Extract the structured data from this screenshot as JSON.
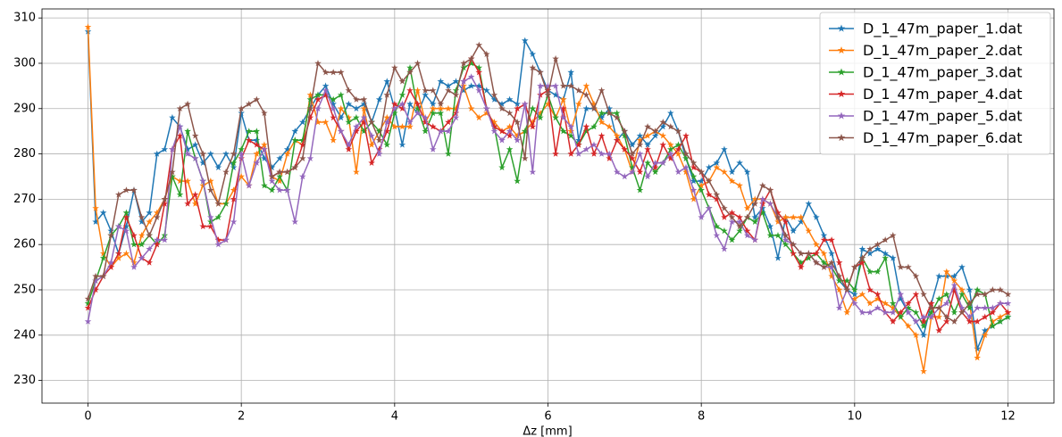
{
  "chart_data": {
    "type": "line",
    "xlabel": "Δz [mm]",
    "x": [
      0,
      0.1,
      0.2,
      0.3,
      0.4,
      0.5,
      0.6,
      0.7,
      0.8,
      0.9,
      1,
      1.1,
      1.2,
      1.3,
      1.4,
      1.5,
      1.6,
      1.7,
      1.8,
      1.9,
      2,
      2.1,
      2.2,
      2.3,
      2.4,
      2.5,
      2.6,
      2.7,
      2.8,
      2.9,
      3,
      3.1,
      3.2,
      3.3,
      3.4,
      3.5,
      3.6,
      3.7,
      3.8,
      3.9,
      4,
      4.1,
      4.2,
      4.3,
      4.4,
      4.5,
      4.6,
      4.7,
      4.8,
      4.9,
      5,
      5.1,
      5.2,
      5.3,
      5.4,
      5.5,
      5.6,
      5.7,
      5.8,
      5.9,
      6,
      6.1,
      6.2,
      6.3,
      6.4,
      6.5,
      6.6,
      6.7,
      6.8,
      6.9,
      7,
      7.1,
      7.2,
      7.3,
      7.4,
      7.5,
      7.6,
      7.7,
      7.8,
      7.9,
      8,
      8.1,
      8.2,
      8.3,
      8.4,
      8.5,
      8.6,
      8.7,
      8.8,
      8.9,
      9,
      9.1,
      9.2,
      9.3,
      9.4,
      9.5,
      9.6,
      9.7,
      9.8,
      9.9,
      10,
      10.1,
      10.2,
      10.3,
      10.4,
      10.5,
      10.6,
      10.7,
      10.8,
      10.9,
      11,
      11.1,
      11.2,
      11.3,
      11.4,
      11.5,
      11.6,
      11.7,
      11.8,
      11.9,
      12
    ],
    "series": [
      {
        "name": "D_1_47m_paper_1.dat",
        "color": "#1f77b4",
        "values": [
          307,
          265,
          267,
          263,
          258,
          264,
          272,
          265,
          267,
          280,
          281,
          288,
          286,
          281,
          282,
          278,
          280,
          277,
          280,
          277,
          289,
          283,
          283,
          279,
          277,
          279,
          281,
          285,
          287,
          290,
          293,
          295,
          291,
          288,
          291,
          290,
          291,
          287,
          292,
          296,
          290,
          282,
          291,
          289,
          293,
          291,
          296,
          295,
          296,
          294,
          295,
          295,
          294,
          292,
          291,
          292,
          291,
          305,
          302,
          298,
          294,
          293,
          292,
          298,
          283,
          290,
          290,
          288,
          290,
          283,
          285,
          282,
          284,
          282,
          284,
          286,
          289,
          285,
          279,
          274,
          274,
          277,
          278,
          281,
          276,
          278,
          276,
          266,
          268,
          264,
          257,
          266,
          263,
          265,
          269,
          266,
          262,
          258,
          252,
          250,
          249,
          259,
          258,
          259,
          258,
          257,
          248,
          245,
          243,
          240,
          247,
          253,
          253,
          253,
          255,
          250,
          237,
          241,
          242,
          243,
          244
        ]
      },
      {
        "name": "D_1_47m_paper_2.dat",
        "color": "#ff7f0e",
        "values": [
          308,
          268,
          258,
          255,
          257,
          258,
          256,
          262,
          265,
          267,
          270,
          275,
          274,
          274,
          269,
          273,
          274,
          269,
          269,
          272,
          275,
          273,
          280,
          282,
          275,
          274,
          280,
          283,
          282,
          293,
          287,
          287,
          283,
          290,
          288,
          276,
          290,
          282,
          285,
          288,
          286,
          286,
          286,
          294,
          287,
          290,
          290,
          290,
          290,
          295,
          290,
          288,
          289,
          287,
          285,
          286,
          284,
          285,
          287,
          289,
          291,
          288,
          292,
          285,
          291,
          295,
          291,
          287,
          286,
          284,
          281,
          276,
          283,
          284,
          285,
          284,
          282,
          280,
          276,
          270,
          273,
          274,
          277,
          276,
          274,
          273,
          268,
          270,
          270,
          269,
          265,
          266,
          266,
          266,
          263,
          260,
          258,
          253,
          250,
          245,
          248,
          249,
          247,
          248,
          247,
          246,
          244,
          242,
          240,
          232,
          244,
          244,
          254,
          252,
          250,
          247,
          235,
          240,
          243,
          244,
          245
        ]
      },
      {
        "name": "D_1_47m_paper_3.dat",
        "color": "#2ca02c",
        "values": [
          247,
          252,
          257,
          262,
          264,
          267,
          260,
          260,
          262,
          260,
          262,
          275,
          271,
          285,
          279,
          274,
          265,
          266,
          269,
          278,
          281,
          285,
          285,
          273,
          272,
          275,
          272,
          283,
          283,
          292,
          293,
          293,
          292,
          293,
          287,
          288,
          285,
          287,
          285,
          282,
          289,
          293,
          299,
          290,
          285,
          289,
          289,
          280,
          294,
          299,
          300,
          299,
          290,
          286,
          277,
          281,
          274,
          285,
          290,
          288,
          293,
          288,
          285,
          284,
          282,
          285,
          286,
          289,
          289,
          289,
          284,
          277,
          272,
          278,
          276,
          278,
          281,
          282,
          279,
          275,
          272,
          268,
          264,
          263,
          261,
          263,
          266,
          265,
          267,
          262,
          262,
          260,
          258,
          256,
          257,
          258,
          256,
          255,
          252,
          252,
          250,
          257,
          254,
          254,
          257,
          247,
          244,
          246,
          245,
          242,
          245,
          248,
          249,
          245,
          249,
          246,
          250,
          249,
          242,
          243,
          244
        ]
      },
      {
        "name": "D_1_47m_paper_4.dat",
        "color": "#d62728",
        "values": [
          246,
          250,
          253,
          255,
          258,
          266,
          262,
          257,
          256,
          260,
          269,
          281,
          284,
          269,
          271,
          264,
          264,
          261,
          261,
          270,
          279,
          283,
          282,
          281,
          275,
          276,
          276,
          277,
          282,
          288,
          292,
          293,
          288,
          285,
          281,
          285,
          287,
          278,
          281,
          285,
          291,
          290,
          294,
          291,
          287,
          286,
          285,
          287,
          289,
          296,
          301,
          298,
          290,
          286,
          285,
          284,
          290,
          291,
          286,
          293,
          294,
          280,
          290,
          280,
          282,
          286,
          280,
          284,
          279,
          283,
          281,
          279,
          276,
          281,
          277,
          282,
          279,
          281,
          284,
          277,
          276,
          271,
          270,
          266,
          267,
          266,
          263,
          261,
          269,
          272,
          267,
          265,
          258,
          255,
          258,
          258,
          261,
          261,
          256,
          250,
          255,
          256,
          250,
          249,
          245,
          243,
          245,
          247,
          249,
          243,
          247,
          241,
          243,
          250,
          245,
          243,
          243,
          244,
          245,
          247,
          245
        ]
      },
      {
        "name": "D_1_47m_paper_5.dat",
        "color": "#9467bd",
        "values": [
          243,
          252,
          253,
          256,
          264,
          263,
          255,
          257,
          259,
          261,
          261,
          281,
          286,
          280,
          279,
          274,
          266,
          260,
          261,
          265,
          280,
          273,
          278,
          281,
          274,
          272,
          272,
          265,
          275,
          279,
          290,
          294,
          290,
          285,
          282,
          286,
          288,
          284,
          280,
          287,
          290,
          291,
          287,
          289,
          288,
          281,
          285,
          285,
          288,
          296,
          297,
          294,
          290,
          285,
          283,
          285,
          283,
          291,
          276,
          295,
          295,
          295,
          288,
          286,
          280,
          281,
          282,
          280,
          280,
          276,
          275,
          276,
          280,
          275,
          278,
          278,
          280,
          276,
          277,
          272,
          266,
          268,
          262,
          259,
          265,
          265,
          262,
          261,
          270,
          269,
          266,
          261,
          260,
          258,
          258,
          256,
          255,
          255,
          246,
          250,
          247,
          245,
          245,
          246,
          245,
          245,
          249,
          245,
          243,
          244,
          244,
          246,
          247,
          251,
          246,
          244,
          246,
          246,
          246,
          247,
          247
        ]
      },
      {
        "name": "D_1_47m_paper_6.dat",
        "color": "#8c564b",
        "values": [
          248,
          253,
          253,
          262,
          271,
          272,
          272,
          266,
          262,
          266,
          270,
          276,
          290,
          291,
          284,
          280,
          272,
          269,
          276,
          280,
          290,
          291,
          292,
          289,
          275,
          276,
          276,
          277,
          279,
          290,
          300,
          298,
          298,
          298,
          294,
          292,
          292,
          287,
          283,
          293,
          299,
          296,
          298,
          300,
          294,
          294,
          291,
          294,
          293,
          300,
          301,
          304,
          302,
          293,
          290,
          289,
          287,
          279,
          299,
          298,
          293,
          301,
          295,
          295,
          294,
          293,
          290,
          294,
          289,
          288,
          285,
          280,
          282,
          286,
          285,
          287,
          286,
          285,
          280,
          278,
          276,
          274,
          271,
          268,
          266,
          264,
          266,
          269,
          273,
          272,
          266,
          262,
          260,
          258,
          258,
          256,
          255,
          256,
          253,
          250,
          255,
          257,
          259,
          260,
          261,
          262,
          255,
          255,
          253,
          249,
          246,
          246,
          244,
          243,
          245,
          247,
          249,
          249,
          250,
          250,
          249
        ]
      }
    ],
    "xlim": [
      -0.6,
      12.6
    ],
    "xticks": [
      0,
      2,
      4,
      6,
      8,
      10,
      12
    ],
    "ylim": [
      225,
      312
    ],
    "yticks": [
      230,
      240,
      250,
      260,
      270,
      280,
      290,
      300,
      310
    ],
    "grid": true,
    "legend": "upper right",
    "marker": "star"
  }
}
